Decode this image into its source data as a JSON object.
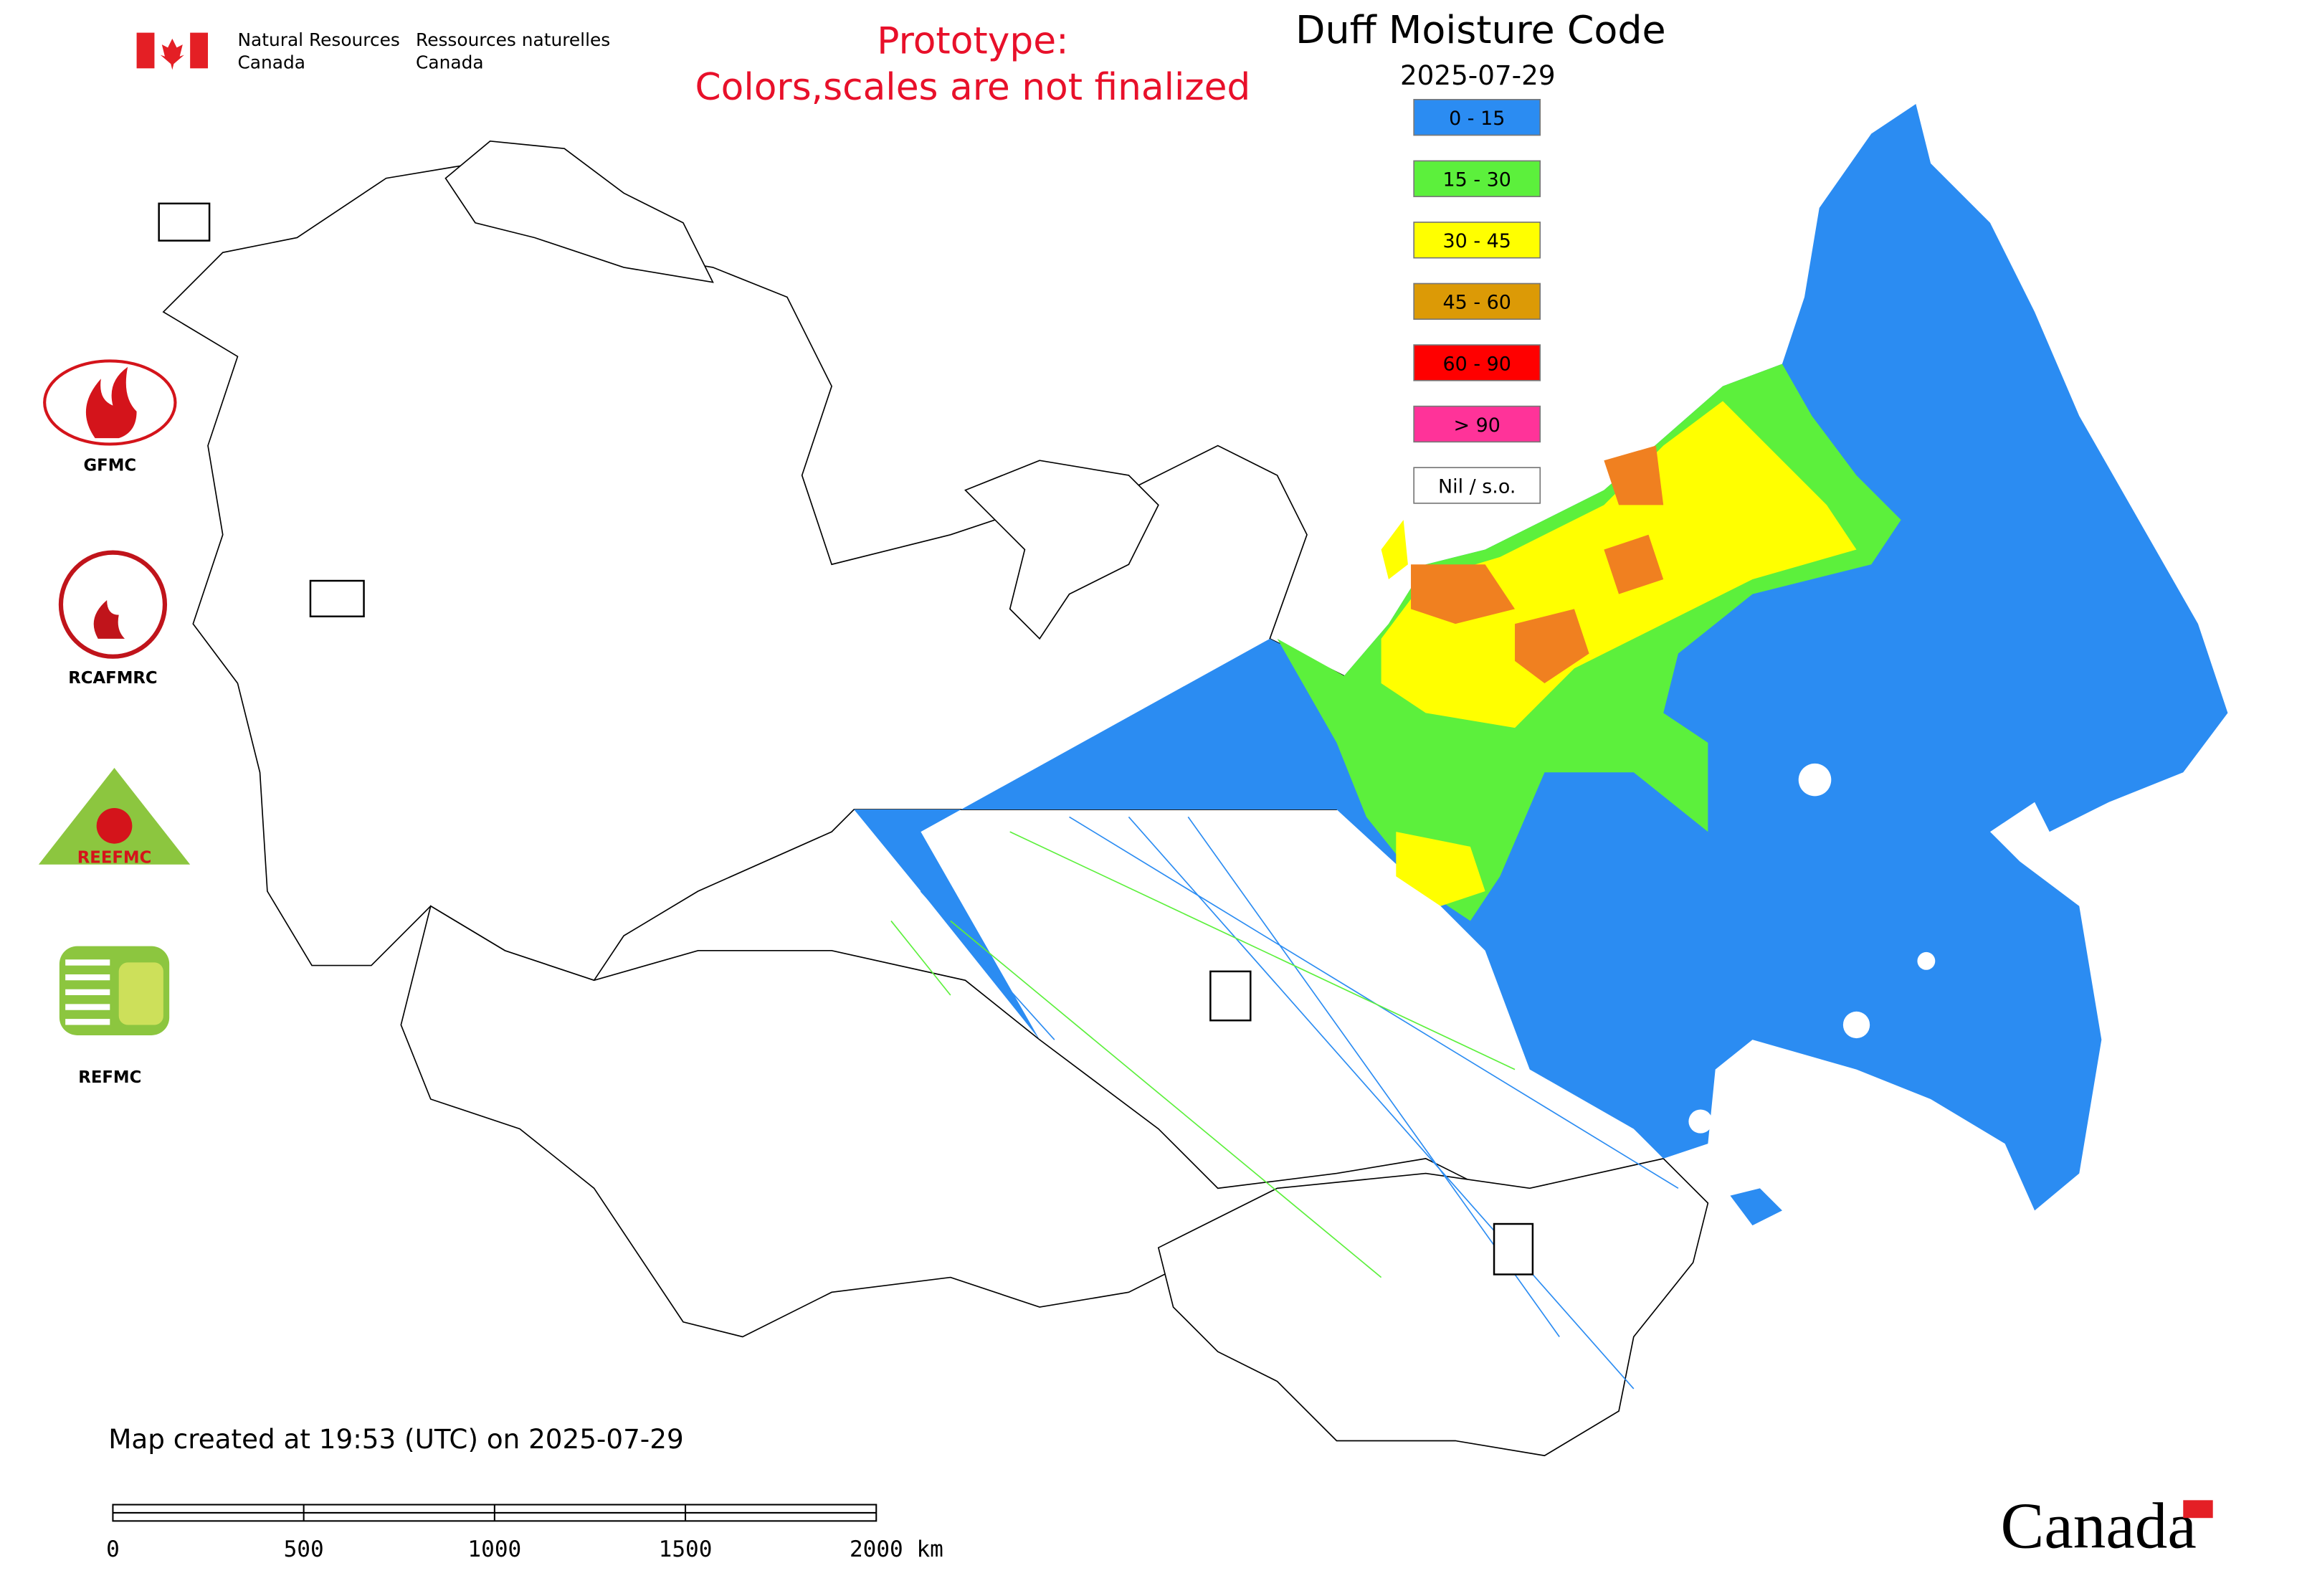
{
  "header": {
    "agency_en": [
      "Natural Resources",
      "Canada"
    ],
    "agency_fr": [
      "Ressources naturelles",
      "Canada"
    ],
    "prototype_note": [
      "Prototype:",
      "Colors,scales are not finalized"
    ]
  },
  "map": {
    "title": "Duff Moisture Code",
    "date": "2025-07-29",
    "legend": [
      {
        "label": "0 - 15",
        "color": "#2b8cf2"
      },
      {
        "label": "15 - 30",
        "color": "#5cf03c"
      },
      {
        "label": "30 - 45",
        "color": "#ffff00"
      },
      {
        "label": "45 - 60",
        "color": "#dc9a06"
      },
      {
        "label": "60 - 90",
        "color": "#ff0000"
      },
      {
        "label": "> 90",
        "color": "#ff3399"
      },
      {
        "label": "Nil / s.o.",
        "color": "#ffffff"
      }
    ],
    "logos": [
      "GFMC",
      "RCAFMRC",
      "REEFMC",
      "REFMC"
    ],
    "created": "Map created at 19:53 (UTC) on 2025-07-29",
    "scale_bar": [
      "0",
      "500",
      "1000",
      "1500",
      "2000 km"
    ],
    "wordmark": "Canada"
  }
}
